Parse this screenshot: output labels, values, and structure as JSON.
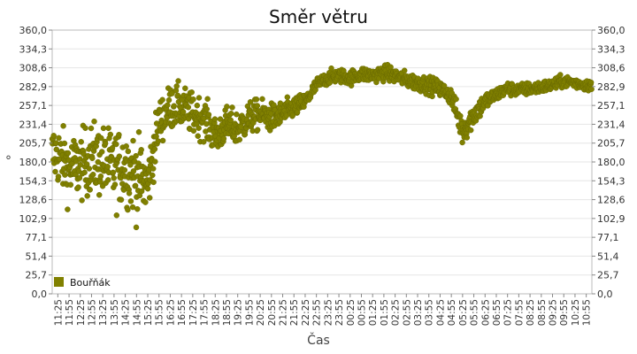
{
  "chart_data": {
    "type": "scatter",
    "title": "Směr větru",
    "xlabel": "Čas",
    "ylabel": "°",
    "ylim": [
      0,
      360
    ],
    "y_ticks": [
      "0,0",
      "25,7",
      "51,4",
      "77,1",
      "102,9",
      "128,6",
      "154,3",
      "180,0",
      "205,7",
      "231,4",
      "257,1",
      "282,9",
      "308,6",
      "334,3",
      "360,0"
    ],
    "x_ticks": [
      "11:25",
      "11:55",
      "12:25",
      "12:55",
      "13:25",
      "13:55",
      "14:25",
      "14:55",
      "15:25",
      "15:55",
      "16:25",
      "16:55",
      "17:25",
      "17:55",
      "18:25",
      "18:55",
      "19:25",
      "19:55",
      "20:25",
      "20:55",
      "21:25",
      "21:55",
      "22:25",
      "22:55",
      "23:25",
      "23:55",
      "00:25",
      "00:55",
      "01:25",
      "01:55",
      "02:25",
      "02:55",
      "03:25",
      "03:55",
      "04:25",
      "04:55",
      "05:25",
      "05:55",
      "06:25",
      "06:55",
      "07:25",
      "07:55",
      "08:25",
      "08:55",
      "09:25",
      "09:55",
      "10:25",
      "10:55"
    ],
    "grid": true,
    "legend_position": "bottom-left",
    "series": [
      {
        "name": "Bouřňák",
        "color": "#808000",
        "profile": [
          {
            "t": "11:25",
            "y": 190
          },
          {
            "t": "11:55",
            "y": 170
          },
          {
            "t": "12:25",
            "y": 175
          },
          {
            "t": "12:55",
            "y": 185
          },
          {
            "t": "13:25",
            "y": 180
          },
          {
            "t": "13:55",
            "y": 170
          },
          {
            "t": "14:25",
            "y": 175
          },
          {
            "t": "14:55",
            "y": 160
          },
          {
            "t": "15:25",
            "y": 150
          },
          {
            "t": "15:55",
            "y": 235
          },
          {
            "t": "16:25",
            "y": 255
          },
          {
            "t": "16:55",
            "y": 255
          },
          {
            "t": "17:25",
            "y": 245
          },
          {
            "t": "17:55",
            "y": 240
          },
          {
            "t": "18:25",
            "y": 215
          },
          {
            "t": "18:55",
            "y": 230
          },
          {
            "t": "19:25",
            "y": 225
          },
          {
            "t": "19:55",
            "y": 240
          },
          {
            "t": "20:25",
            "y": 245
          },
          {
            "t": "20:55",
            "y": 240
          },
          {
            "t": "21:25",
            "y": 245
          },
          {
            "t": "21:55",
            "y": 255
          },
          {
            "t": "22:25",
            "y": 262
          },
          {
            "t": "22:55",
            "y": 285
          },
          {
            "t": "23:25",
            "y": 295
          },
          {
            "t": "23:55",
            "y": 298
          },
          {
            "t": "00:25",
            "y": 295
          },
          {
            "t": "00:55",
            "y": 300
          },
          {
            "t": "01:25",
            "y": 298
          },
          {
            "t": "01:55",
            "y": 302
          },
          {
            "t": "02:25",
            "y": 298
          },
          {
            "t": "02:55",
            "y": 292
          },
          {
            "t": "03:25",
            "y": 288
          },
          {
            "t": "03:55",
            "y": 285
          },
          {
            "t": "04:25",
            "y": 280
          },
          {
            "t": "04:55",
            "y": 270
          },
          {
            "t": "05:25",
            "y": 222
          },
          {
            "t": "05:55",
            "y": 245
          },
          {
            "t": "06:25",
            "y": 262
          },
          {
            "t": "06:55",
            "y": 272
          },
          {
            "t": "07:25",
            "y": 280
          },
          {
            "t": "07:55",
            "y": 278
          },
          {
            "t": "08:25",
            "y": 280
          },
          {
            "t": "08:55",
            "y": 282
          },
          {
            "t": "09:25",
            "y": 285
          },
          {
            "t": "09:55",
            "y": 290
          },
          {
            "t": "10:25",
            "y": 288
          },
          {
            "t": "10:55",
            "y": 285
          }
        ],
        "spread": [
          {
            "t": "11:25",
            "v": 55
          },
          {
            "t": "14:55",
            "v": 70
          },
          {
            "t": "15:55",
            "v": 40
          },
          {
            "t": "17:55",
            "v": 35
          },
          {
            "t": "20:55",
            "v": 25
          },
          {
            "t": "22:55",
            "v": 12
          },
          {
            "t": "04:55",
            "v": 15
          },
          {
            "t": "05:25",
            "v": 25
          },
          {
            "t": "06:55",
            "v": 12
          },
          {
            "t": "10:55",
            "v": 10
          }
        ]
      }
    ]
  }
}
